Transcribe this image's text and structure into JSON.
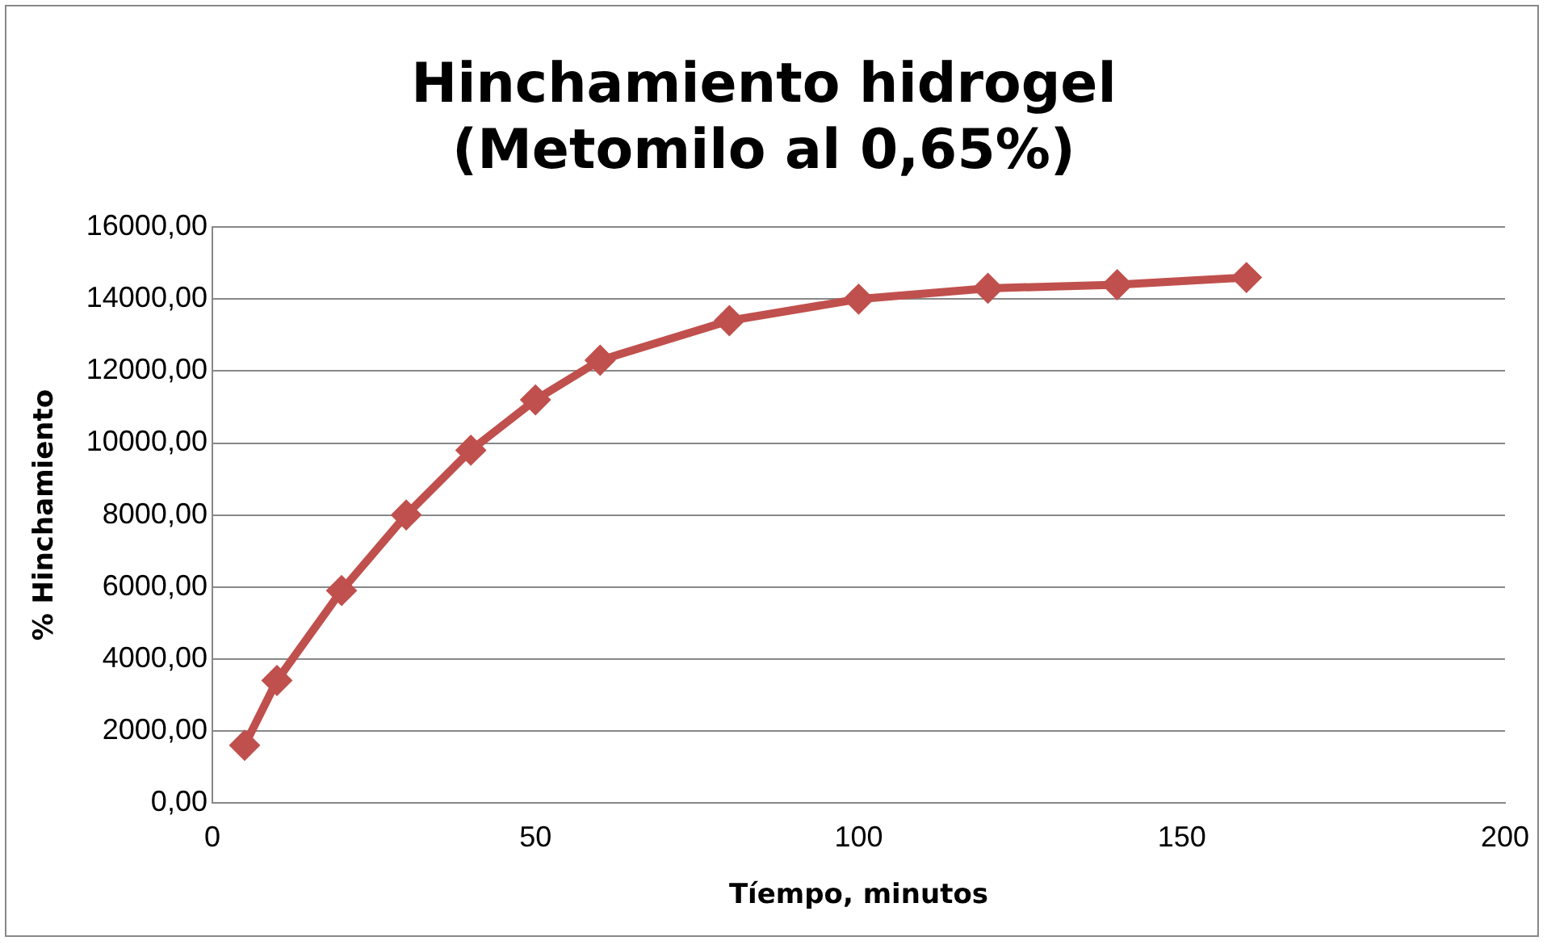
{
  "chart_data": {
    "type": "line",
    "title": "Hinchamiento hidrogel\n(Metomilo al 0,65%)",
    "xlabel": "Tíempo, minutos",
    "ylabel": "% Hinchamiento",
    "series": [
      {
        "color": "#c0504d",
        "x": [
          5,
          10,
          20,
          30,
          40,
          50,
          60,
          80,
          100,
          120,
          140,
          160
        ],
        "values": [
          1600,
          3400,
          5900,
          8000,
          9800,
          11200,
          12300,
          13400,
          14000,
          14300,
          14400,
          14600
        ]
      }
    ],
    "xlim": [
      0,
      200
    ],
    "xticks": [
      0,
      50,
      100,
      150,
      200
    ],
    "ylim": [
      0,
      16000
    ],
    "yticks": [
      {
        "value": 0,
        "label": "0,00"
      },
      {
        "value": 2000,
        "label": "2000,00"
      },
      {
        "value": 4000,
        "label": "4000,00"
      },
      {
        "value": 6000,
        "label": "6000,00"
      },
      {
        "value": 8000,
        "label": "8000,00"
      },
      {
        "value": 10000,
        "label": "10000,00"
      },
      {
        "value": 12000,
        "label": "12000,00"
      },
      {
        "value": 14000,
        "label": "14000,00"
      },
      {
        "value": 16000,
        "label": "16000,00"
      }
    ],
    "grid": "y",
    "marker": "diamond",
    "line_style": "solid",
    "legend": false
  }
}
